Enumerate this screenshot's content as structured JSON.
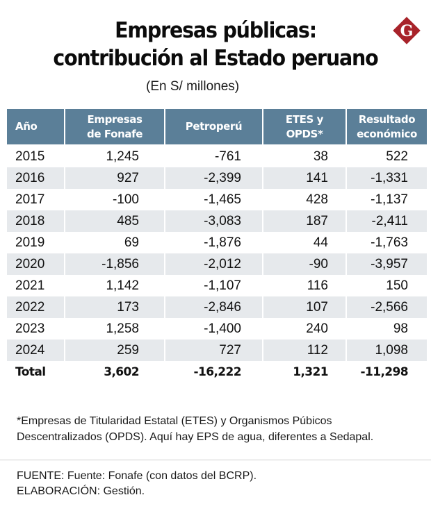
{
  "header": {
    "title_line1": "Empresas públicas:",
    "title_line2": "contribución al Estado peruano",
    "subtitle": "(En S/ millones)",
    "logo_letter": "G",
    "logo_color": "#a8232a"
  },
  "table": {
    "columns": [
      "Año",
      "Empresas de Fonafe",
      "Petroperú",
      "ETES y OPDS*",
      "Resultado económico"
    ],
    "header_lines": [
      [
        "Año"
      ],
      [
        "Empresas",
        "de Fonafe"
      ],
      [
        "Petroperú"
      ],
      [
        "ETES y",
        "OPDS*"
      ],
      [
        "Resultado",
        "económico"
      ]
    ],
    "rows": [
      [
        "2015",
        "1,245",
        "-761",
        "38",
        "522"
      ],
      [
        "2016",
        "927",
        "-2,399",
        "141",
        "-1,331"
      ],
      [
        "2017",
        "-100",
        "-1,465",
        "428",
        "-1,137"
      ],
      [
        "2018",
        "485",
        "-3,083",
        "187",
        "-2,411"
      ],
      [
        "2019",
        "69",
        "-1,876",
        "44",
        "-1,763"
      ],
      [
        "2020",
        "-1,856",
        "-2,012",
        "-90",
        "-3,957"
      ],
      [
        "2021",
        "1,142",
        "-1,107",
        "116",
        "150"
      ],
      [
        "2022",
        "173",
        "-2,846",
        "107",
        "-2,566"
      ],
      [
        "2023",
        "1,258",
        "-1,400",
        "240",
        "98"
      ],
      [
        "2024",
        "259",
        "727",
        "112",
        "1,098"
      ]
    ],
    "total": [
      "Total",
      "3,602",
      "-16,222",
      "1,321",
      "-11,298"
    ],
    "header_color": "#5b7f98",
    "stripe_color": "#e6e9ec"
  },
  "footnote": {
    "line1": "*Empresas de Titularidad Estatal (ETES) y Organismos Púbicos",
    "line2": "Descentralizados (OPDS). Aquí hay EPS de agua, diferentes a Sedapal."
  },
  "source": {
    "line1": "FUENTE: Fuente: Fonafe (con datos del BCRP).",
    "line2": "ELABORACIÓN: Gestión."
  }
}
